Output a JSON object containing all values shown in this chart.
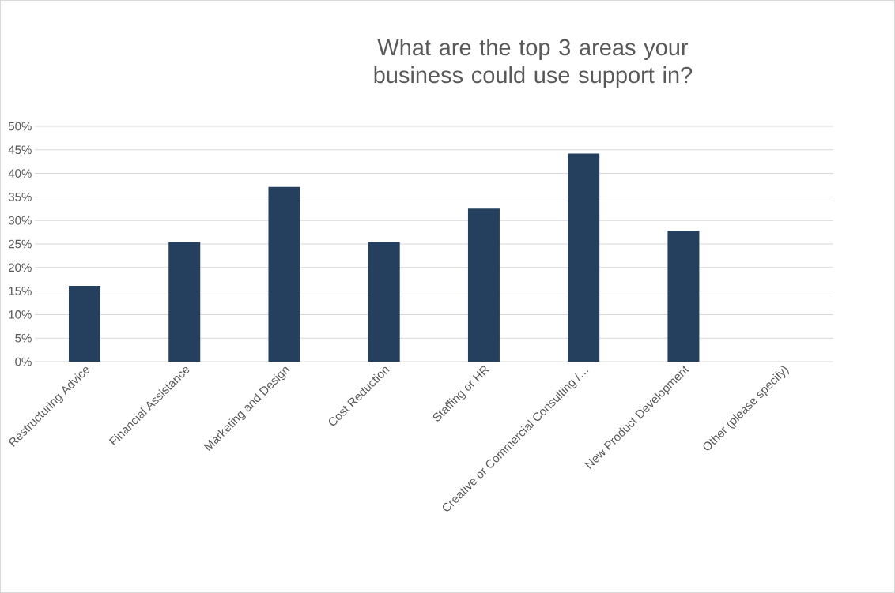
{
  "chart_data": {
    "type": "bar",
    "title": "What are the top 3 areas your business could use support in?",
    "categories": [
      "Restructuring Advice",
      "Financial Assistance",
      "Marketing and Design",
      "Cost Reduction",
      "Staffing or HR",
      "Creative or Commercial Consulting /…",
      "New Product Development",
      "Other (please specify)"
    ],
    "values": [
      16.1,
      25.4,
      37.1,
      25.4,
      32.5,
      44.2,
      27.8,
      0
    ],
    "color": "#253f5f",
    "ylim": [
      0,
      50
    ],
    "yticks": [
      {
        "value": 0,
        "label": "0%"
      },
      {
        "value": 5,
        "label": "5%"
      },
      {
        "value": 10,
        "label": "10%"
      },
      {
        "value": 15,
        "label": "15%"
      },
      {
        "value": 20,
        "label": "20%"
      },
      {
        "value": 25,
        "label": "25%"
      },
      {
        "value": 30,
        "label": "30%"
      },
      {
        "value": 35,
        "label": "35%"
      },
      {
        "value": 40,
        "label": "40%"
      },
      {
        "value": 45,
        "label": "45%"
      },
      {
        "value": 50,
        "label": "50%"
      }
    ],
    "grid": "y"
  }
}
